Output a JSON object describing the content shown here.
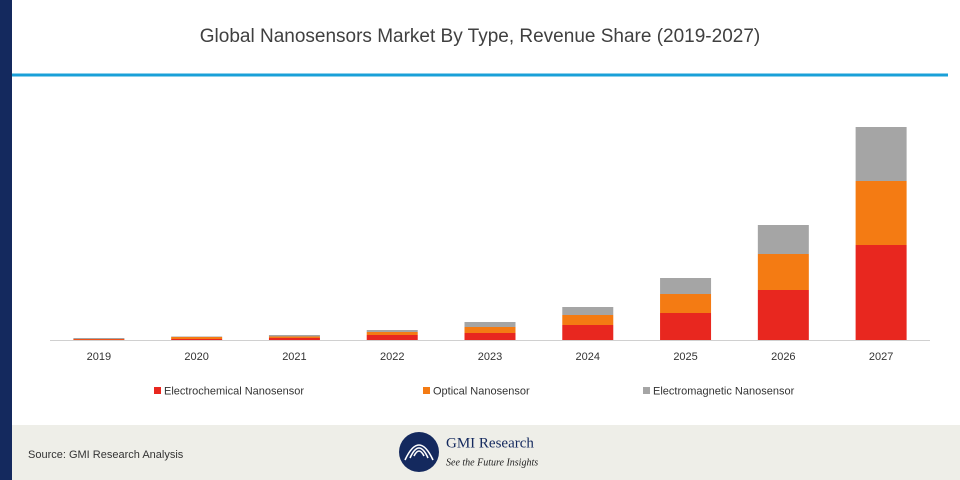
{
  "chart_data": {
    "type": "stacked-bar",
    "title": "Global Nanosensors Market By Type, Revenue Share (2019-2027)",
    "categories": [
      "2019",
      "2020",
      "2021",
      "2022",
      "2023",
      "2024",
      "2025",
      "2026",
      "2027"
    ],
    "series": [
      {
        "name": "Electrochemical Nanosensor",
        "color": "#e8271f",
        "values": [
          0.5,
          1,
          2,
          5,
          7,
          15,
          27,
          50,
          95
        ]
      },
      {
        "name": "Optical Nanosensor",
        "color": "#f47b13",
        "values": [
          0.5,
          2,
          1.5,
          3,
          6,
          10,
          19,
          36,
          64
        ]
      },
      {
        "name": "Electromagnetic Nanosensor",
        "color": "#a5a5a5",
        "values": [
          1,
          0.5,
          1.5,
          2,
          5,
          8,
          16,
          29,
          54
        ]
      }
    ],
    "ylim": [
      0,
      220
    ],
    "legend": "bottom"
  },
  "footer": {
    "source": "Source: GMI Research Analysis",
    "brand": "GMI Research",
    "tagline": "See the Future Insights"
  }
}
